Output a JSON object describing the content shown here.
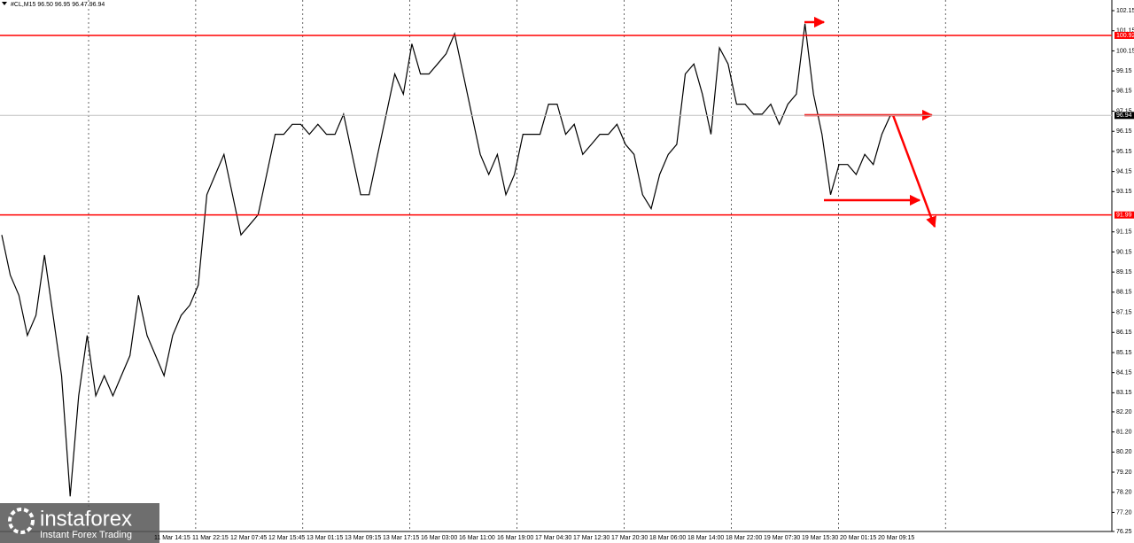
{
  "chart_data": {
    "type": "line",
    "title": "#CL,M15  96.50 96.95 96.47 96.94",
    "color": "#000000",
    "values": [
      91.0,
      89.0,
      88.0,
      86.0,
      87.0,
      90.0,
      87.0,
      84.0,
      78.0,
      83.0,
      86.0,
      83.0,
      84.0,
      83.0,
      84.0,
      85.0,
      88.0,
      86.0,
      85.0,
      84.0,
      86.0,
      87.0,
      87.5,
      88.5,
      93.0,
      94.0,
      95.0,
      93.0,
      91.0,
      91.5,
      92.0,
      94.0,
      96.0,
      96.0,
      96.5,
      96.5,
      96.0,
      96.5,
      96.0,
      96.0,
      97.0,
      95.0,
      93.0,
      93.0,
      95.0,
      97.0,
      99.0,
      98.0,
      100.5,
      99.0,
      99.0,
      99.5,
      100.0,
      101.0,
      99.0,
      97.0,
      95.0,
      94.0,
      95.0,
      93.0,
      94.0,
      96.0,
      96.0,
      96.0,
      97.5,
      97.5,
      96.0,
      96.5,
      95.0,
      95.5,
      96.0,
      96.0,
      96.5,
      95.5,
      95.0,
      93.0,
      92.3,
      94.0,
      95.0,
      95.5,
      99.0,
      99.5,
      98.0,
      96.0,
      100.3,
      99.5,
      97.5,
      97.5,
      97.0,
      97.0,
      97.5,
      96.5,
      97.5,
      98.0,
      101.5,
      98.0,
      96.0,
      93.0,
      94.5,
      94.5,
      94.0,
      95.0,
      94.5,
      96.0,
      96.94
    ],
    "ylim": [
      76.25,
      102.68
    ],
    "yticks": [
      102.15,
      101.15,
      100.15,
      99.15,
      98.15,
      97.15,
      96.15,
      95.15,
      94.15,
      93.15,
      91.15,
      90.15,
      89.15,
      88.15,
      87.15,
      86.15,
      85.15,
      84.15,
      83.15,
      {
        "value": 82.2,
        "label": "82.20"
      },
      {
        "value": 81.2,
        "label": "81.20"
      },
      {
        "value": 80.2,
        "label": "80.20"
      },
      {
        "value": 79.2,
        "label": "79.20"
      },
      {
        "value": 78.2,
        "label": "78.20"
      },
      {
        "value": 77.2,
        "label": "77.20"
      },
      76.25
    ],
    "time_labels": [
      "11 Mar 14:15",
      "11 Mar 22:15",
      "12 Mar 07:45",
      "12 Mar 15:45",
      "13 Mar 01:15",
      "13 Mar 09:15",
      "13 Mar 17:15",
      "16 Mar 03:00",
      "16 Mar 11:00",
      "16 Mar 19:00",
      "17 Mar 04:30",
      "17 Mar 12:30",
      "17 Mar 20:30",
      "18 Mar 06:00",
      "18 Mar 14:00",
      "18 Mar 22:00",
      "19 Mar 07:30",
      "19 Mar 15:30",
      "20 Mar 01:15",
      "20 Mar 09:15"
    ],
    "levels": [
      100.92,
      96.94,
      91.99
    ],
    "level_colors": [
      "#ff0000",
      "#c0c0c0",
      "#ff0000"
    ],
    "watermark": {
      "brand": "instaforex",
      "tagline": "Instant Forex Trading"
    }
  }
}
